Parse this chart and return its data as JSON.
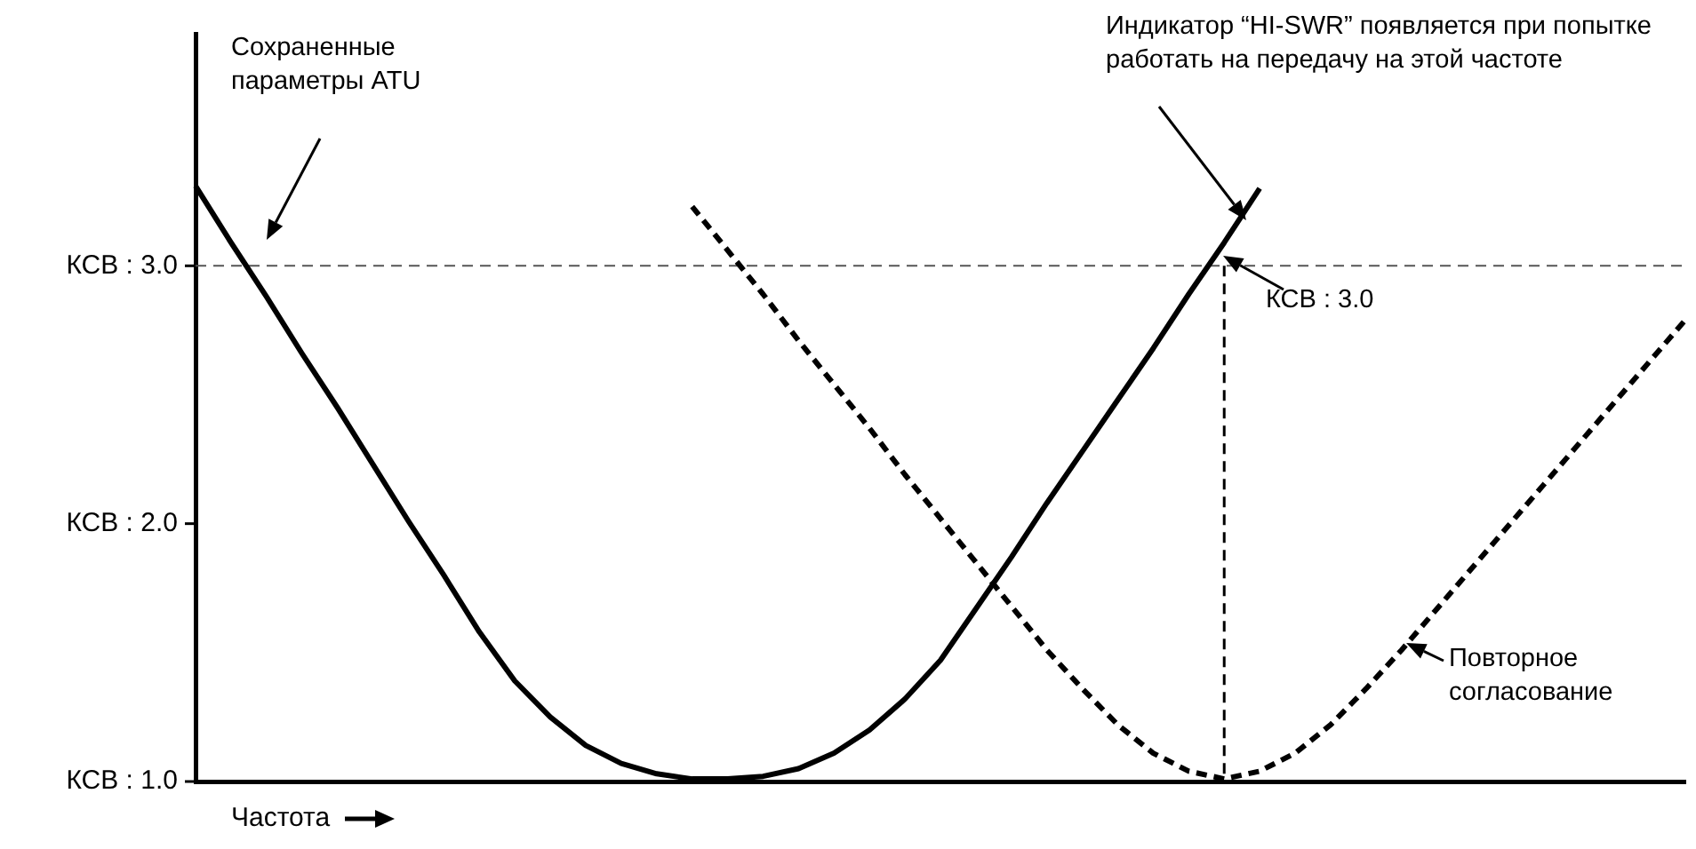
{
  "chart_data": {
    "type": "line",
    "xlabel": "Частота",
    "ylim": [
      1,
      3.9
    ],
    "categories": [
      null,
      null,
      null,
      null,
      null,
      null,
      null,
      null,
      null,
      null,
      null,
      null,
      null,
      null,
      null,
      null,
      null,
      null,
      null,
      null,
      null,
      null,
      null,
      null,
      null,
      null,
      null,
      null,
      null,
      null,
      null,
      null,
      null,
      null,
      null,
      null,
      null,
      null,
      null,
      null,
      null,
      null,
      null
    ],
    "yticks": [
      {
        "value": 1,
        "label": "КСВ : 1.0"
      },
      {
        "value": 2,
        "label": "КСВ : 2.0"
      },
      {
        "value": 3,
        "label": "КСВ : 3.0"
      }
    ],
    "tick_labels": "y",
    "grid": false,
    "marker": "none",
    "series": [
      {
        "color": "#000000",
        "line_style": "solid",
        "values": [
          3.31,
          3.09,
          2.88,
          2.66,
          2.45,
          2.23,
          2.01,
          1.8,
          1.58,
          1.39,
          1.25,
          1.14,
          1.07,
          1.03,
          1.01,
          1.01,
          1.02,
          1.05,
          1.11,
          1.2,
          1.32,
          1.47,
          1.67,
          1.87,
          2.08,
          2.28,
          2.48,
          2.68,
          2.89,
          3.09,
          3.3,
          null,
          null,
          null,
          null,
          null,
          null,
          null,
          null,
          null,
          null,
          null,
          null
        ]
      },
      {
        "color": "#000000",
        "line_style": "dashed",
        "values": [
          null,
          null,
          null,
          null,
          null,
          null,
          null,
          null,
          null,
          null,
          null,
          null,
          null,
          null,
          3.23,
          3.06,
          2.89,
          2.71,
          2.54,
          2.37,
          2.19,
          2.02,
          1.85,
          1.68,
          1.51,
          1.36,
          1.22,
          1.11,
          1.04,
          1.01,
          1.04,
          1.11,
          1.22,
          1.36,
          1.51,
          1.67,
          1.83,
          1.99,
          2.15,
          2.31,
          2.47,
          2.63,
          2.79
        ]
      }
    ],
    "ref_lines": [
      {
        "axis": "y",
        "value": 3.0,
        "color": "#555555",
        "line_style": "dashed"
      }
    ],
    "annotations": [
      "Сохраненные параметры ATU",
      "Индикатор “HI-SWR” появляется при попытке работать на передачу на этой частоте",
      "КСВ : 3.0",
      "Повторное согласование"
    ]
  }
}
